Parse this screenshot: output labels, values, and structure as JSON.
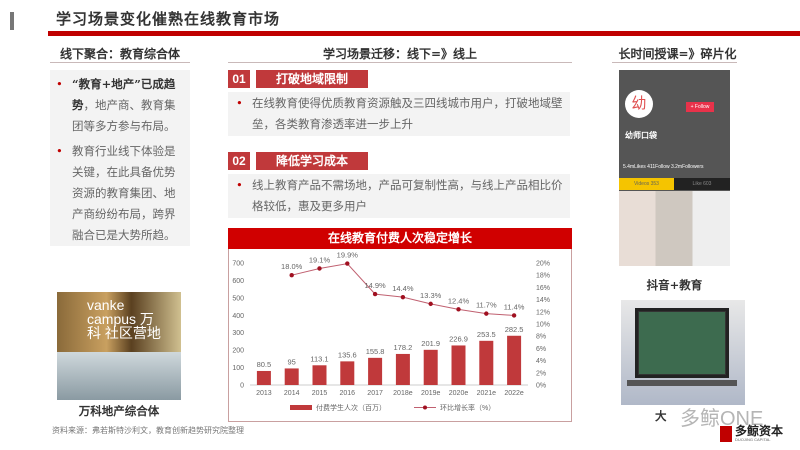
{
  "header": {
    "title": "学习场景变化催熟在线教育市场"
  },
  "left": {
    "heading": "线下聚合：教育综合体",
    "bullets": [
      {
        "bold": "“教育+地产”已成趋势",
        "text": "，地产商、教育集团等多方参与布局。"
      },
      {
        "bold": "",
        "text": "教育行业线下体验是关键，在此具备优势资源的教育集团、地产商纷纷布局，跨界融合已是大势所趋。"
      }
    ],
    "image_text": "vanke campus 万科 社区营地",
    "caption": "万科地产综合体"
  },
  "middle": {
    "heading": "学习场景迁移：线下=》线上",
    "points": [
      {
        "num": "01",
        "label": "打破地域限制",
        "text": "在线教育使得优质教育资源触及三四线城市用户，打破地域壁垒，各类教育渗透率进一步上升"
      },
      {
        "num": "02",
        "label": "降低学习成本",
        "text": "线上教育产品不需场地，产品可复制性高，与线上产品相比价格较低，惠及更多用户"
      }
    ]
  },
  "right": {
    "heading": "长时间授课=》碎片化",
    "phone": {
      "name": "幼师口袋",
      "follow": "+ Follow",
      "stats": "5.4mLikes  411Follow  3.2mFollowers",
      "tab1": "Videos 353",
      "tab2": "Like 603"
    },
    "caption1": "抖音+教育",
    "caption2": "大"
  },
  "watermark": {
    "text": "多鲸ONE",
    "logo": "多鲸资本",
    "logo_sub": "DUOJING CAPITAL"
  },
  "source": "资料来源：弗若斯特沙利文，教育创新趋势研究院整理",
  "colors": {
    "accent": "#c00000",
    "bar": "#c0393b",
    "line": "#a01020"
  },
  "chart_data": {
    "type": "bar+line",
    "title": "在线教育付费人次稳定增长",
    "categories": [
      "2013",
      "2014",
      "2015",
      "2016",
      "2017",
      "2018e",
      "2019e",
      "2020e",
      "2021e",
      "2022e"
    ],
    "series": [
      {
        "name": "付费学生人次（百万）",
        "type": "bar",
        "axis": "left",
        "values": [
          80.5,
          95,
          113.1,
          135.6,
          155.8,
          178.2,
          201.9,
          226.9,
          253.5,
          282.5
        ],
        "labels": [
          "80.5",
          "95",
          "113.1",
          "135.6",
          "155.8",
          "178.2",
          "201.9",
          "226.9",
          "253.5",
          "282.5"
        ]
      },
      {
        "name": "环比增长率（%）",
        "type": "line",
        "axis": "right",
        "values": [
          null,
          18.0,
          19.1,
          19.9,
          14.9,
          14.4,
          13.3,
          12.4,
          11.7,
          11.4
        ],
        "labels": [
          "",
          "18.0%",
          "19.1%",
          "19.9%",
          "14.9%",
          "14.4%",
          "13.3%",
          "12.4%",
          "11.7%",
          "11.4%"
        ]
      }
    ],
    "y_left": {
      "range": [
        0,
        700
      ],
      "ticks": [
        "0",
        "100",
        "200",
        "300",
        "400",
        "500",
        "600",
        "700"
      ]
    },
    "y_right": {
      "range": [
        0,
        20
      ],
      "ticks": [
        "0%",
        "2%",
        "4%",
        "6%",
        "8%",
        "10%",
        "12%",
        "14%",
        "16%",
        "18%",
        "20%"
      ]
    },
    "grid": false,
    "legend": "bottom"
  }
}
